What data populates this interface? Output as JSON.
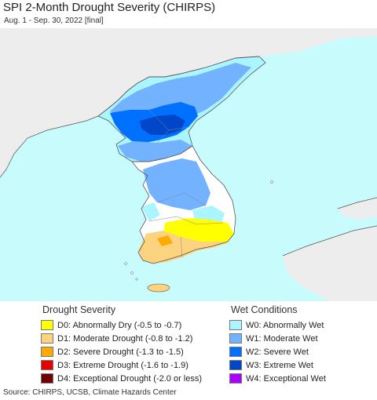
{
  "title": "SPI 2-Month Drought Severity (CHIRPS)",
  "subtitle": "Aug. 1 - Sep. 30, 2022 [final]",
  "colors": {
    "ocean": "#c8fbfb",
    "land_outside": "#ededed",
    "no_drought": "#ffffff",
    "border": "#555555"
  },
  "drought_legend": {
    "heading": "Drought Severity",
    "items": [
      {
        "code": "D0",
        "label": "D0: Abnormally Dry (-0.5 to -0.7)",
        "color": "#ffff00"
      },
      {
        "code": "D1",
        "label": "D1: Moderate Drought (-0.8 to -1.2)",
        "color": "#fcd37f"
      },
      {
        "code": "D2",
        "label": "D2: Severe Drought (-1.3 to -1.5)",
        "color": "#ffaa00"
      },
      {
        "code": "D3",
        "label": "D3: Extreme Drought (-1.6 to -1.9)",
        "color": "#e60000"
      },
      {
        "code": "D4",
        "label": "D4: Exceptional Drought (-2.0 or less)",
        "color": "#730000"
      }
    ]
  },
  "wet_legend": {
    "heading": "Wet Conditions",
    "items": [
      {
        "code": "W0",
        "label": "W0: Abnormally Wet",
        "color": "#aaf5ff"
      },
      {
        "code": "W1",
        "label": "W1: Moderate Wet",
        "color": "#73b2ff"
      },
      {
        "code": "W2",
        "label": "W2: Severe Wet",
        "color": "#0070ff"
      },
      {
        "code": "W3",
        "label": "W3: Extreme Wet",
        "color": "#0046c8"
      },
      {
        "code": "W4",
        "label": "W4: Exceptional Wet",
        "color": "#aa00ff"
      }
    ]
  },
  "source": "Source: CHIRPS, UCSB, Climate Hazards Center"
}
